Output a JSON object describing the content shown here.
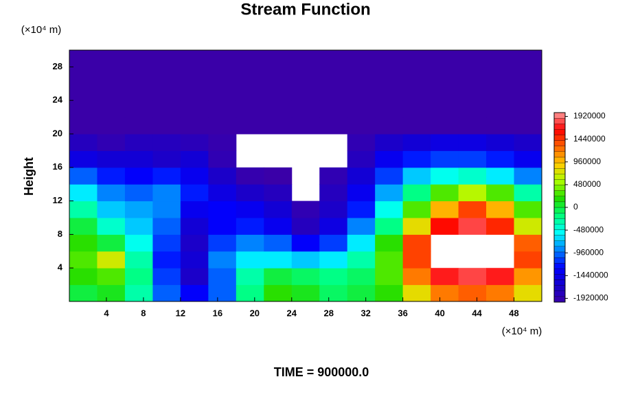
{
  "chart_data": {
    "type": "heatmap",
    "title": "Stream Function",
    "ylabel": "Height",
    "x_unit": "(×10⁴ m)",
    "y_unit": "(×10⁴ m)",
    "footer": "TIME = 900000.0",
    "xlim": [
      0,
      51
    ],
    "ylim": [
      0,
      30
    ],
    "xticks": [
      4,
      8,
      12,
      16,
      20,
      24,
      28,
      32,
      36,
      40,
      44,
      48
    ],
    "yticks": [
      4,
      8,
      12,
      16,
      20,
      24,
      28
    ],
    "clim": [
      -2000000,
      2000000
    ],
    "cticks": [
      -1920000,
      -1440000,
      -960000,
      -480000,
      0,
      480000,
      960000,
      1440000,
      1920000
    ],
    "colors": [
      "#3a00a8",
      "#1400d0",
      "#0000ff",
      "#0080ff",
      "#00ffff",
      "#00ff80",
      "#22dd00",
      "#aaff00",
      "#ffcc00",
      "#ff6600",
      "#ff0000",
      "#ff9999"
    ],
    "x": [
      1.5,
      4.5,
      7.5,
      10.5,
      13.5,
      16.5,
      19.5,
      22.5,
      25.5,
      28.5,
      31.5,
      34.5,
      37.5,
      40.5,
      43.5,
      46.5,
      49.5
    ],
    "y": [
      1,
      3,
      5,
      7,
      9,
      11,
      13,
      15,
      17,
      19,
      21,
      23,
      25,
      27,
      29
    ],
    "z": [
      [
        0,
        100000,
        -300000,
        -1000000,
        -1300000,
        -1000000,
        -200000,
        200000,
        100000,
        -100000,
        0,
        200000,
        800000,
        1200000,
        1300000,
        1200000,
        800000
      ],
      [
        200000,
        300000,
        -200000,
        -1100000,
        -1700000,
        -1000000,
        -300000,
        0,
        -100000,
        -200000,
        -100000,
        300000,
        1200000,
        1700000,
        1800000,
        1700000,
        1100000
      ],
      [
        300000,
        700000,
        -300000,
        -1200000,
        -1600000,
        -900000,
        -600000,
        -600000,
        -700000,
        -600000,
        -300000,
        300000,
        1400000,
        null,
        null,
        null,
        1400000
      ],
      [
        200000,
        0,
        -500000,
        -1100000,
        -1700000,
        -1100000,
        -900000,
        -1000000,
        -1300000,
        -1100000,
        -600000,
        200000,
        1400000,
        null,
        null,
        null,
        1300000
      ],
      [
        0,
        -400000,
        -700000,
        -1000000,
        -1600000,
        -1300000,
        -1200000,
        -1400000,
        -1800000,
        -1500000,
        -900000,
        -200000,
        800000,
        1600000,
        1800000,
        1500000,
        700000
      ],
      [
        -300000,
        -700000,
        -800000,
        -900000,
        -1400000,
        -1300000,
        -1400000,
        -1600000,
        -1900000,
        -1700000,
        -1200000,
        -500000,
        300000,
        1000000,
        1400000,
        1000000,
        300000
      ],
      [
        -600000,
        -900000,
        -1000000,
        -900000,
        -1200000,
        -1500000,
        -1700000,
        -1800000,
        null,
        -1800000,
        -1400000,
        -800000,
        -200000,
        300000,
        600000,
        300000,
        -300000
      ],
      [
        -1000000,
        -1200000,
        -1300000,
        -1200000,
        -1400000,
        -1700000,
        -1950000,
        -2000000,
        null,
        -1900000,
        -1600000,
        -1100000,
        -700000,
        -500000,
        -400000,
        -600000,
        -900000
      ],
      [
        -1500000,
        -1600000,
        -1600000,
        -1700000,
        -1600000,
        -1900000,
        null,
        null,
        null,
        null,
        -1800000,
        -1400000,
        -1200000,
        -1100000,
        -1100000,
        -1200000,
        -1400000
      ],
      [
        -1800000,
        -1900000,
        -1800000,
        -1800000,
        -1850000,
        -1950000,
        null,
        null,
        null,
        null,
        -1900000,
        -1700000,
        -1600000,
        -1500000,
        -1500000,
        -1600000,
        -1700000
      ],
      [
        -2100000,
        -2100000,
        -2100000,
        -2100000,
        -2100000,
        -2100000,
        -2100000,
        -2100000,
        -2100000,
        -2100000,
        -2100000,
        -2100000,
        -2100000,
        -2100000,
        -2100000,
        -2100000,
        -2100000
      ],
      [
        -2100000,
        -2100000,
        -2100000,
        -2100000,
        -2100000,
        -2100000,
        -2100000,
        -2100000,
        -2100000,
        -2100000,
        -2100000,
        -2100000,
        -2100000,
        -2100000,
        -2100000,
        -2100000,
        -2100000
      ],
      [
        -2100000,
        -2100000,
        -2100000,
        -2100000,
        -2100000,
        -2100000,
        -2100000,
        -2100000,
        -2100000,
        -2100000,
        -2100000,
        -2100000,
        -2100000,
        -2100000,
        -2100000,
        -2100000,
        -2100000
      ],
      [
        -2100000,
        -2100000,
        -2100000,
        -2100000,
        -2100000,
        -2100000,
        -2100000,
        -2100000,
        -2100000,
        -2100000,
        -2100000,
        -2100000,
        -2100000,
        -2100000,
        -2100000,
        -2100000,
        -2100000
      ],
      [
        -2100000,
        -2100000,
        -2100000,
        -2100000,
        -2100000,
        -2100000,
        -2100000,
        -2100000,
        -2100000,
        -2100000,
        -2100000,
        -2100000,
        -2100000,
        -2100000,
        -2100000,
        -2100000,
        -2100000
      ]
    ]
  }
}
